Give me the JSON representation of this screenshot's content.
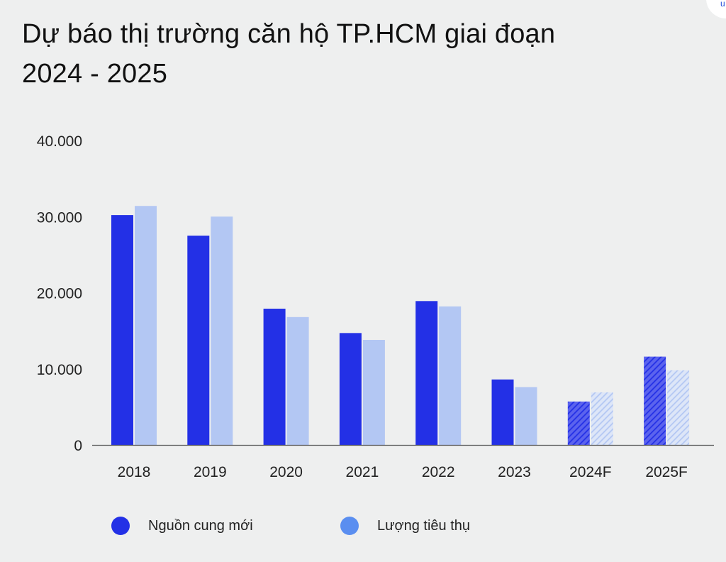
{
  "title_line1": "Dự báo thị trường căn hộ TP.HCM giai đoạn",
  "title_line2": "2024 - 2025",
  "corner_icon": "u",
  "colors": {
    "supply": "#2330e6",
    "sales": "#b3c7f3",
    "sales_legend": "#5a8ef0",
    "axis": "#555555",
    "text": "#222222"
  },
  "legend": [
    {
      "label": "Nguồn cung mới"
    },
    {
      "label": "Lượng tiêu thụ"
    }
  ],
  "chart_data": {
    "type": "bar",
    "title": "Dự báo thị trường căn hộ TP.HCM giai đoạn 2024 - 2025",
    "xlabel": "",
    "ylabel": "",
    "categories": [
      "2018",
      "2019",
      "2020",
      "2021",
      "2022",
      "2023",
      "2024F",
      "2025F"
    ],
    "forecast": [
      false,
      false,
      false,
      false,
      false,
      false,
      true,
      true
    ],
    "series": [
      {
        "name": "Nguồn cung mới",
        "values": [
          30200,
          27500,
          17900,
          14700,
          18900,
          8600,
          5700,
          11600
        ]
      },
      {
        "name": "Lượng tiêu thụ",
        "values": [
          31400,
          30000,
          16800,
          13800,
          18200,
          7600,
          6900,
          9800
        ]
      }
    ],
    "ylim": [
      0,
      40000
    ],
    "yticks": [
      "0",
      "10.000",
      "20.000",
      "30.000",
      "40.000"
    ],
    "ytick_values": [
      0,
      10000,
      20000,
      30000,
      40000
    ],
    "grid": false,
    "legend_position": "bottom-left"
  }
}
